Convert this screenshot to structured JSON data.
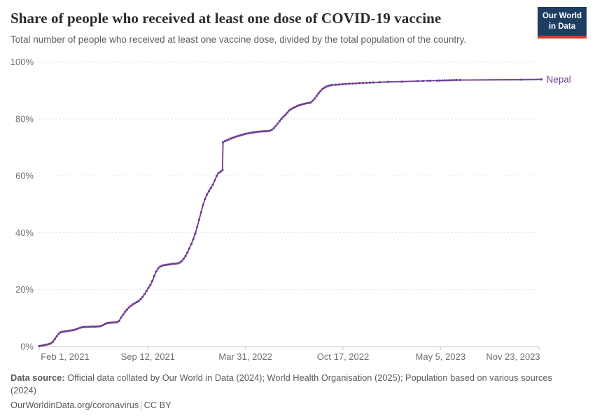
{
  "header": {
    "title": "Share of people who received at least one dose of COVID-19 vaccine",
    "subtitle": "Total number of people who received at least one vaccine dose, divided by the total population of the country.",
    "logo": {
      "line1": "Our World",
      "line2": "in Data"
    }
  },
  "footer": {
    "source_label": "Data source:",
    "source_text": "Official data collated by Our World in Data (2024); World Health Organisation (2025); Population based on various sources (2024)",
    "url": "OurWorldinData.org/coronavirus",
    "separator": "|",
    "license": "CC BY"
  },
  "colors": {
    "line": "#6d3e91",
    "grid": "#dddddd",
    "axis": "#c4c4c4",
    "tick_text": "#6e6e6e",
    "title": "#2b2b2b",
    "subtitle": "#5c5c5c",
    "footer": "#5b5b5b",
    "logo_bg": "#1d3d63",
    "logo_red": "#d8352a"
  },
  "chart_data": {
    "type": "line",
    "title": "Share of people who received at least one dose of COVID-19 vaccine",
    "subtitle": "Total number of people who received at least one vaccine dose, divided by the total population of the country.",
    "xlabel": "",
    "ylabel": "",
    "ylim": [
      0,
      100
    ],
    "grid": "horizontal-dashed",
    "legend": "end-of-line-label",
    "x_domain": [
      "2021-02-01",
      "2023-11-23"
    ],
    "x_ticks": [
      {
        "label": "Feb 1, 2021",
        "date": "2021-02-01"
      },
      {
        "label": "Sep 12, 2021",
        "date": "2021-09-12"
      },
      {
        "label": "Mar 31, 2022",
        "date": "2022-03-31"
      },
      {
        "label": "Oct 17, 2022",
        "date": "2022-10-17"
      },
      {
        "label": "May 5, 2023",
        "date": "2023-05-05"
      },
      {
        "label": "Nov 23, 2023",
        "date": "2023-11-23"
      }
    ],
    "y_ticks": [
      {
        "value": 0,
        "label": "0%"
      },
      {
        "value": 20,
        "label": "20%"
      },
      {
        "value": 40,
        "label": "40%"
      },
      {
        "value": 60,
        "label": "60%"
      },
      {
        "value": 80,
        "label": "80%"
      },
      {
        "value": 100,
        "label": "100%"
      }
    ],
    "series": [
      {
        "name": "Nepal",
        "color": "#6d3e91",
        "points": [
          [
            "2021-02-01",
            0.15
          ],
          [
            "2021-02-05",
            0.3
          ],
          [
            "2021-02-09",
            0.45
          ],
          [
            "2021-02-13",
            0.55
          ],
          [
            "2021-02-17",
            0.7
          ],
          [
            "2021-02-21",
            0.85
          ],
          [
            "2021-02-25",
            1.1
          ],
          [
            "2021-03-01",
            1.7
          ],
          [
            "2021-03-05",
            2.6
          ],
          [
            "2021-03-09",
            3.6
          ],
          [
            "2021-03-13",
            4.5
          ],
          [
            "2021-03-17",
            5.0
          ],
          [
            "2021-03-21",
            5.2
          ],
          [
            "2021-03-25",
            5.3
          ],
          [
            "2021-03-29",
            5.4
          ],
          [
            "2021-04-02",
            5.5
          ],
          [
            "2021-04-06",
            5.6
          ],
          [
            "2021-04-10",
            5.7
          ],
          [
            "2021-04-14",
            5.85
          ],
          [
            "2021-04-18",
            6.1
          ],
          [
            "2021-04-22",
            6.35
          ],
          [
            "2021-04-26",
            6.6
          ],
          [
            "2021-04-30",
            6.75
          ],
          [
            "2021-05-04",
            6.85
          ],
          [
            "2021-05-08",
            6.9
          ],
          [
            "2021-05-12",
            6.9
          ],
          [
            "2021-05-16",
            6.95
          ],
          [
            "2021-05-20",
            7.0
          ],
          [
            "2021-05-24",
            7.0
          ],
          [
            "2021-05-28",
            7.0
          ],
          [
            "2021-06-01",
            7.05
          ],
          [
            "2021-06-05",
            7.1
          ],
          [
            "2021-06-09",
            7.3
          ],
          [
            "2021-06-13",
            7.6
          ],
          [
            "2021-06-17",
            8.0
          ],
          [
            "2021-06-21",
            8.25
          ],
          [
            "2021-06-25",
            8.35
          ],
          [
            "2021-06-29",
            8.4
          ],
          [
            "2021-07-03",
            8.45
          ],
          [
            "2021-07-07",
            8.5
          ],
          [
            "2021-07-11",
            8.55
          ],
          [
            "2021-07-15",
            9.0
          ],
          [
            "2021-07-19",
            10.2
          ],
          [
            "2021-07-23",
            11.2
          ],
          [
            "2021-07-27",
            12.2
          ],
          [
            "2021-07-31",
            13.0
          ],
          [
            "2021-08-04",
            13.7
          ],
          [
            "2021-08-08",
            14.3
          ],
          [
            "2021-08-12",
            14.8
          ],
          [
            "2021-08-16",
            15.2
          ],
          [
            "2021-08-20",
            15.6
          ],
          [
            "2021-08-24",
            16.0
          ],
          [
            "2021-08-28",
            16.6
          ],
          [
            "2021-09-01",
            17.4
          ],
          [
            "2021-09-05",
            18.4
          ],
          [
            "2021-09-09",
            19.5
          ],
          [
            "2021-09-13",
            20.6
          ],
          [
            "2021-09-17",
            21.6
          ],
          [
            "2021-09-21",
            23.0
          ],
          [
            "2021-09-25",
            24.8
          ],
          [
            "2021-09-29",
            26.4
          ],
          [
            "2021-10-03",
            27.5
          ],
          [
            "2021-10-07",
            28.1
          ],
          [
            "2021-10-11",
            28.4
          ],
          [
            "2021-10-15",
            28.6
          ],
          [
            "2021-10-19",
            28.7
          ],
          [
            "2021-10-23",
            28.8
          ],
          [
            "2021-10-27",
            28.9
          ],
          [
            "2021-10-31",
            29.0
          ],
          [
            "2021-11-04",
            29.05
          ],
          [
            "2021-11-08",
            29.1
          ],
          [
            "2021-11-12",
            29.2
          ],
          [
            "2021-11-16",
            29.5
          ],
          [
            "2021-11-20",
            30.0
          ],
          [
            "2021-11-24",
            30.8
          ],
          [
            "2021-11-28",
            31.8
          ],
          [
            "2021-12-02",
            33.0
          ],
          [
            "2021-12-06",
            34.5
          ],
          [
            "2021-12-10",
            36.0
          ],
          [
            "2021-12-14",
            37.7
          ],
          [
            "2021-12-18",
            39.7
          ],
          [
            "2021-12-22",
            42.0
          ],
          [
            "2021-12-26",
            44.6
          ],
          [
            "2021-12-30",
            47.2
          ],
          [
            "2022-01-03",
            49.8
          ],
          [
            "2022-01-07",
            51.8
          ],
          [
            "2022-01-11",
            53.4
          ],
          [
            "2022-01-15",
            54.6
          ],
          [
            "2022-01-19",
            55.7
          ],
          [
            "2022-01-23",
            56.9
          ],
          [
            "2022-01-27",
            58.4
          ],
          [
            "2022-01-31",
            60.0
          ],
          [
            "2022-02-04",
            61.0
          ],
          [
            "2022-02-08",
            61.5
          ],
          [
            "2022-02-12",
            62.0
          ],
          [
            "2022-02-13",
            71.8
          ],
          [
            "2022-02-17",
            72.2
          ],
          [
            "2022-02-21",
            72.5
          ],
          [
            "2022-02-25",
            72.8
          ],
          [
            "2022-03-01",
            73.1
          ],
          [
            "2022-03-05",
            73.35
          ],
          [
            "2022-03-09",
            73.6
          ],
          [
            "2022-03-13",
            73.85
          ],
          [
            "2022-03-17",
            74.05
          ],
          [
            "2022-03-21",
            74.25
          ],
          [
            "2022-03-25",
            74.45
          ],
          [
            "2022-03-29",
            74.65
          ],
          [
            "2022-04-02",
            74.8
          ],
          [
            "2022-04-06",
            74.95
          ],
          [
            "2022-04-10",
            75.1
          ],
          [
            "2022-04-14",
            75.2
          ],
          [
            "2022-04-18",
            75.3
          ],
          [
            "2022-04-22",
            75.4
          ],
          [
            "2022-04-26",
            75.5
          ],
          [
            "2022-04-30",
            75.55
          ],
          [
            "2022-05-04",
            75.6
          ],
          [
            "2022-05-08",
            75.65
          ],
          [
            "2022-05-12",
            75.7
          ],
          [
            "2022-05-16",
            75.75
          ],
          [
            "2022-05-20",
            75.85
          ],
          [
            "2022-05-24",
            76.2
          ],
          [
            "2022-05-28",
            76.7
          ],
          [
            "2022-06-01",
            77.5
          ],
          [
            "2022-06-05",
            78.3
          ],
          [
            "2022-06-09",
            79.2
          ],
          [
            "2022-06-13",
            80.1
          ],
          [
            "2022-06-17",
            80.8
          ],
          [
            "2022-06-21",
            81.4
          ],
          [
            "2022-06-25",
            82.2
          ],
          [
            "2022-06-29",
            83.0
          ],
          [
            "2022-07-03",
            83.5
          ],
          [
            "2022-07-07",
            83.9
          ],
          [
            "2022-07-11",
            84.2
          ],
          [
            "2022-07-15",
            84.5
          ],
          [
            "2022-07-19",
            84.8
          ],
          [
            "2022-07-23",
            85.0
          ],
          [
            "2022-07-27",
            85.2
          ],
          [
            "2022-07-31",
            85.35
          ],
          [
            "2022-08-04",
            85.5
          ],
          [
            "2022-08-08",
            85.6
          ],
          [
            "2022-08-12",
            85.8
          ],
          [
            "2022-08-16",
            86.4
          ],
          [
            "2022-08-20",
            87.2
          ],
          [
            "2022-08-24",
            88.1
          ],
          [
            "2022-08-28",
            89.0
          ],
          [
            "2022-09-01",
            89.8
          ],
          [
            "2022-09-05",
            90.5
          ],
          [
            "2022-09-09",
            91.0
          ],
          [
            "2022-09-13",
            91.4
          ],
          [
            "2022-09-17",
            91.6
          ],
          [
            "2022-09-21",
            91.8
          ],
          [
            "2022-09-25",
            91.9
          ],
          [
            "2022-10-02",
            92.0
          ],
          [
            "2022-10-09",
            92.1
          ],
          [
            "2022-10-16",
            92.2
          ],
          [
            "2022-10-23",
            92.3
          ],
          [
            "2022-10-30",
            92.4
          ],
          [
            "2022-11-06",
            92.45
          ],
          [
            "2022-11-13",
            92.5
          ],
          [
            "2022-11-20",
            92.6
          ],
          [
            "2022-11-27",
            92.65
          ],
          [
            "2022-12-04",
            92.7
          ],
          [
            "2022-12-11",
            92.75
          ],
          [
            "2022-12-18",
            92.8
          ],
          [
            "2022-12-31",
            92.9
          ],
          [
            "2023-01-17",
            93.0
          ],
          [
            "2023-02-15",
            93.1
          ],
          [
            "2023-03-19",
            93.3
          ],
          [
            "2023-03-30",
            93.35
          ],
          [
            "2023-04-09",
            93.4
          ],
          [
            "2023-04-14",
            93.42
          ],
          [
            "2023-04-28",
            93.45
          ],
          [
            "2023-05-03",
            93.48
          ],
          [
            "2023-05-08",
            93.5
          ],
          [
            "2023-05-13",
            93.52
          ],
          [
            "2023-05-18",
            93.55
          ],
          [
            "2023-05-23",
            93.57
          ],
          [
            "2023-05-28",
            93.6
          ],
          [
            "2023-06-02",
            93.62
          ],
          [
            "2023-06-07",
            93.64
          ],
          [
            "2023-06-14",
            93.66
          ],
          [
            "2023-10-18",
            93.8
          ],
          [
            "2023-11-28",
            93.9
          ]
        ]
      }
    ]
  }
}
